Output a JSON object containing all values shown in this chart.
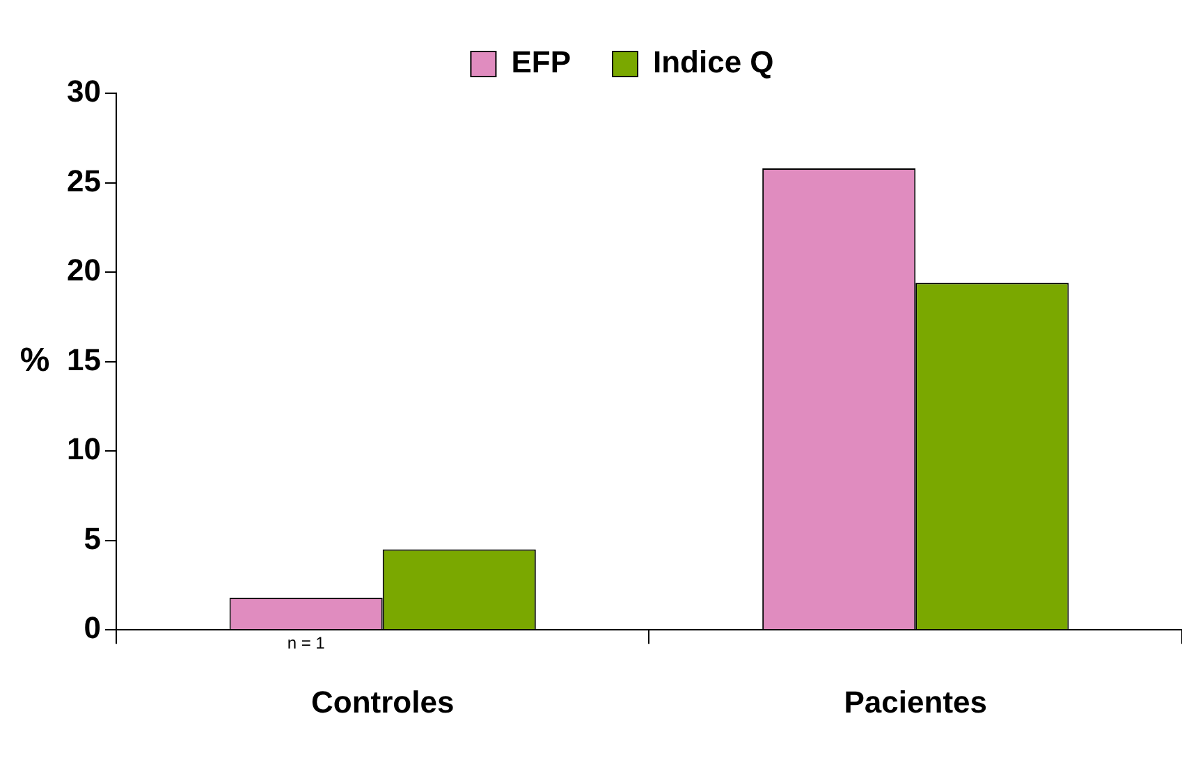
{
  "chart_data": {
    "type": "bar",
    "categories": [
      "Controles",
      "Pacientes"
    ],
    "series": [
      {
        "name": "EFP",
        "color": "#e08cbf",
        "values": [
          1.8,
          25.8
        ]
      },
      {
        "name": "Indice Q",
        "color": "#7aa800",
        "values": [
          4.5,
          19.4
        ]
      }
    ],
    "ylabel": "%",
    "ylim": [
      0,
      30
    ],
    "yticks": [
      0,
      5,
      10,
      15,
      20,
      25,
      30
    ],
    "grid": false,
    "legend": "top",
    "annotations": [
      "n = 1"
    ]
  }
}
